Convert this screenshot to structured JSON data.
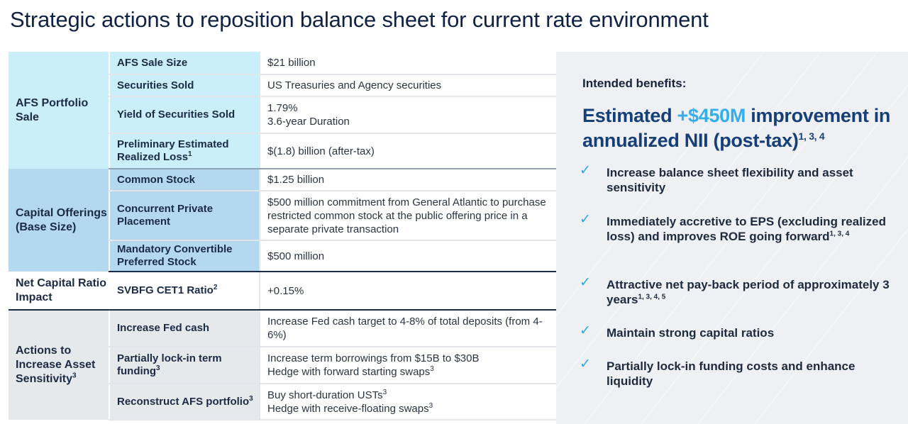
{
  "title": "Strategic actions to reposition balance sheet for current rate environment",
  "table": {
    "afs": {
      "group": "AFS Portfolio Sale",
      "rows": [
        {
          "label": "AFS Sale Size",
          "value": "$21 billion"
        },
        {
          "label": "Securities Sold",
          "value": "US Treasuries and Agency securities"
        },
        {
          "label": "Yield of Securities Sold",
          "value_line1": "1.79%",
          "value_line2": "3.6-year Duration"
        },
        {
          "label": "Preliminary Estimated Realized Loss",
          "label_sup": "1",
          "value": "$(1.8) billion (after-tax)"
        }
      ]
    },
    "capital": {
      "group": "Capital Offerings (Base Size)",
      "rows": [
        {
          "label": "Common Stock",
          "value": "$1.25 billion"
        },
        {
          "label": "Concurrent Private Placement",
          "value": "$500 million commitment from General Atlantic to purchase restricted common stock at the public offering price in a separate private transaction"
        },
        {
          "label": "Mandatory Convertible Preferred Stock",
          "value": "$500 million"
        }
      ]
    },
    "ratio": {
      "group": "Net Capital Ratio Impact",
      "rows": [
        {
          "label": "SVBFG CET1 Ratio",
          "label_sup": "2",
          "value": "+0.15%"
        }
      ]
    },
    "actions": {
      "group": "Actions to Increase Asset Sensitivity",
      "group_sup": "3",
      "rows": [
        {
          "label": "Increase Fed cash",
          "value": "Increase Fed cash target to 4-8% of total deposits (from 4-6%)"
        },
        {
          "label": "Partially lock-in term funding",
          "label_sup": "3",
          "value_line1": "Increase term borrowings from $15B to $30B",
          "value_line2": "Hedge with forward starting swaps",
          "value_line2_sup": "3"
        },
        {
          "label": "Reconstruct AFS portfolio",
          "label_sup": "3",
          "value_line1": "Buy short-duration USTs",
          "value_line1_sup": "3",
          "value_line2": "Hedge with receive-floating swaps",
          "value_line2_sup": "3"
        }
      ]
    }
  },
  "benefits": {
    "heading": "Intended benefits:",
    "headline_pre": "Estimated ",
    "headline_accent": "+$450M",
    "headline_post": " improvement in annualized NII (post-tax)",
    "headline_sup": "1, 3, 4",
    "items": [
      {
        "text": "Increase balance sheet flexibility and asset sensitivity",
        "sup": ""
      },
      {
        "text": "Immediately accretive to EPS (excluding realized loss) and improves ROE going forward",
        "sup": "1, 3, 4"
      },
      {
        "text": "Attractive net pay-back period of approximately 3 years",
        "sup": "1, 3, 4, 5"
      },
      {
        "text": "Maintain strong capital ratios",
        "sup": ""
      },
      {
        "text": "Partially lock-in funding costs and enhance liquidity",
        "sup": ""
      }
    ],
    "check_icon": "check-icon",
    "accent_color": "#32aee8"
  }
}
